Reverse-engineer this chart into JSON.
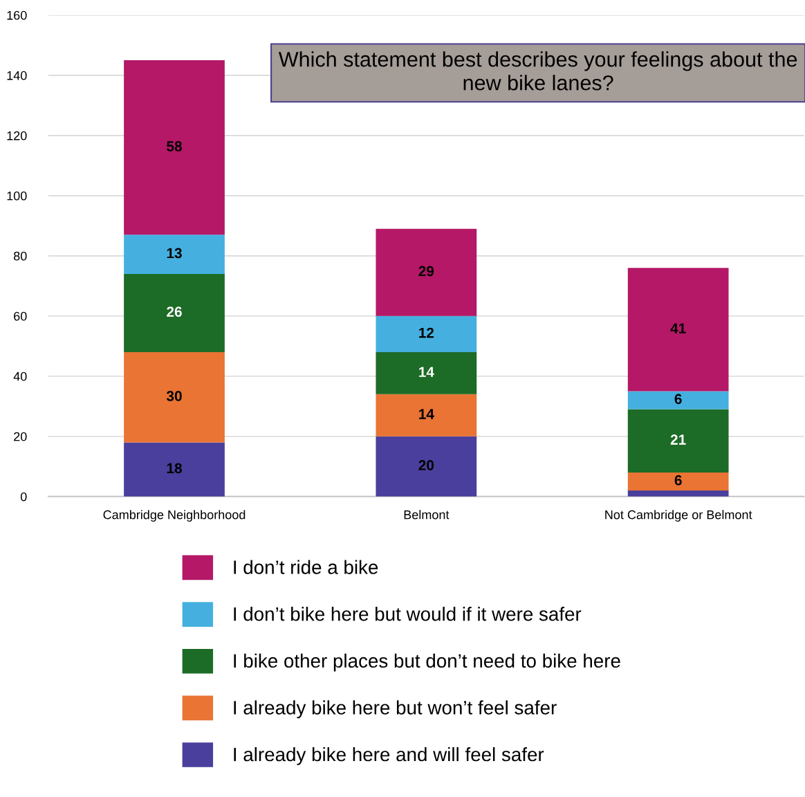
{
  "chart_data": {
    "type": "bar",
    "stacked": true,
    "title": "Which statement best describes your feelings about the new bike lanes?",
    "categories": [
      "Cambridge Neighborhood",
      "Belmont",
      "Not Cambridge or Belmont"
    ],
    "series": [
      {
        "name": "I already bike here and will feel safer",
        "color": "#4a3f9c",
        "values": [
          18,
          20,
          2
        ],
        "value_labels": [
          "18",
          "20",
          null
        ]
      },
      {
        "name": "I already bike here but won’t feel safer",
        "color": "#e97434",
        "values": [
          30,
          14,
          6
        ],
        "value_labels": [
          "30",
          "14",
          "6"
        ]
      },
      {
        "name": "I bike other places but don’t need to bike here",
        "color": "#1c6b26",
        "values": [
          26,
          14,
          21
        ],
        "value_labels": [
          "26",
          "14",
          "21"
        ]
      },
      {
        "name": "I don’t bike here but would if it were safer",
        "color": "#45b0e0",
        "values": [
          13,
          12,
          6
        ],
        "value_labels": [
          "13",
          "12",
          "6"
        ]
      },
      {
        "name": "I don’t ride a bike",
        "color": "#b41866",
        "values": [
          58,
          29,
          41
        ],
        "value_labels": [
          "58",
          "29",
          "41"
        ]
      }
    ],
    "ylim": [
      0,
      160
    ],
    "yticks": [
      0,
      20,
      40,
      60,
      80,
      100,
      120,
      140,
      160
    ],
    "grid": "y",
    "legend": "bottom"
  }
}
